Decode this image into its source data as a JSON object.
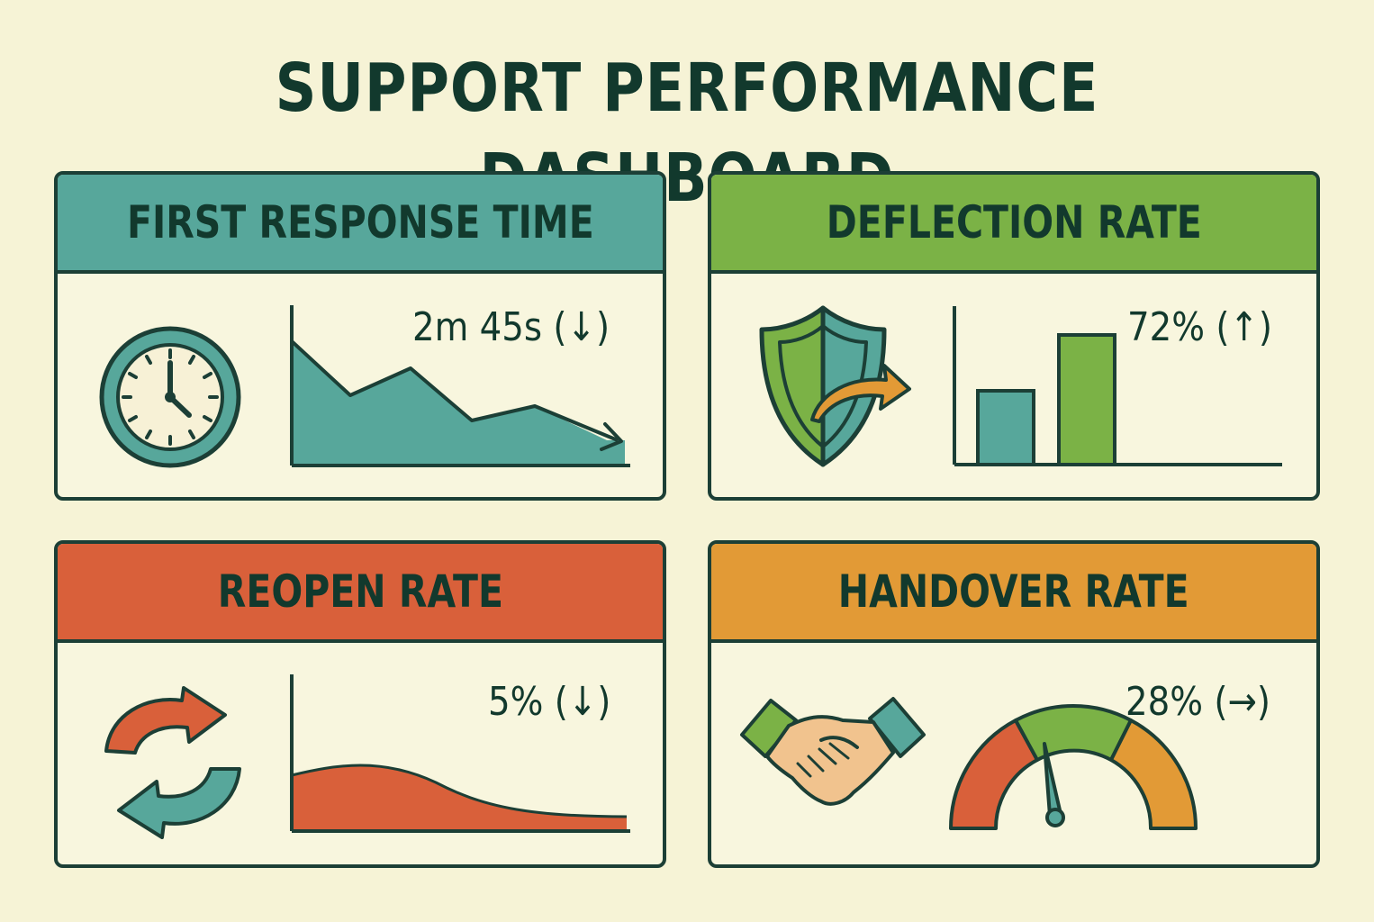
{
  "title": "SUPPORT PERFORMANCE DASHBOARD",
  "colors": {
    "teal": "#57a79b",
    "green": "#7bb246",
    "red": "#d9603a",
    "orange": "#e29a36",
    "ink": "#1c3f36",
    "background": "#f6f3d6"
  },
  "cards": {
    "first_response": {
      "header": "FIRST RESPONSE TIME",
      "value": "2m 45s (↓)",
      "icon": "clock-icon"
    },
    "deflection": {
      "header": "DEFLECTION RATE",
      "value": "72% (↑)",
      "icon": "shield-arrow-icon"
    },
    "reopen": {
      "header": "REOPEN RATE",
      "value": "5% (↓)",
      "icon": "refresh-cycle-icon"
    },
    "handover": {
      "header": "HANDOVER RATE",
      "value": "28% (→)",
      "icon": "handshake-icon"
    }
  }
}
